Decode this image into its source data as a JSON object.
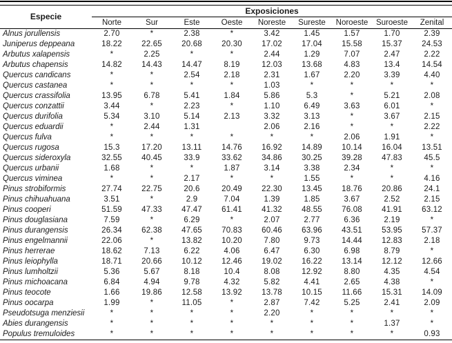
{
  "colors": {
    "text": "#1a1a1a",
    "background": "#ffffff",
    "rule": "#000000"
  },
  "table": {
    "title_col": "Especie",
    "group_header": "Exposiciones",
    "columns": [
      "Norte",
      "Sur",
      "Este",
      "Oeste",
      "Noreste",
      "Sureste",
      "Noroeste",
      "Suroeste",
      "Zenital"
    ],
    "no_data_marker": "*",
    "rows": [
      {
        "species": "Alnus jorullensis",
        "values": [
          "2.70",
          "*",
          "2.38",
          "*",
          "3.42",
          "1.45",
          "1.57",
          "1.70",
          "2.39"
        ]
      },
      {
        "species": "Juniperus deppeana",
        "values": [
          "18.22",
          "22.65",
          "20.68",
          "20.30",
          "17.02",
          "17.04",
          "15.58",
          "15.37",
          "24.53"
        ]
      },
      {
        "species": "Arbutus xalapensis",
        "values": [
          "*",
          "2.25",
          "*",
          "*",
          "2.44",
          "1.29",
          "7.07",
          "2.47",
          "2.22"
        ]
      },
      {
        "species": "Arbutus chapensis",
        "values": [
          "14.82",
          "14.43",
          "14.47",
          "8.19",
          "12.03",
          "13.68",
          "4.83",
          "13.4",
          "14.54"
        ]
      },
      {
        "species": "Quercus candicans",
        "values": [
          "*",
          "*",
          "2.54",
          "2.18",
          "2.31",
          "1.67",
          "2.20",
          "3.39",
          "4.40"
        ]
      },
      {
        "species": "Quercus castanea",
        "values": [
          "*",
          "*",
          "*",
          "*",
          "1.03",
          "*",
          "*",
          "*",
          "*"
        ]
      },
      {
        "species": "Quercus crassifolia",
        "values": [
          "13.95",
          "6.78",
          "5.41",
          "1.84",
          "5.86",
          "5.3",
          "*",
          "5.21",
          "2.08"
        ]
      },
      {
        "species": "Quercus conzattii",
        "values": [
          "3.44",
          "*",
          "2.23",
          "*",
          "1.10",
          "6.49",
          "3.63",
          "6.01",
          "*"
        ]
      },
      {
        "species": "Quercus durifolia",
        "values": [
          "5.34",
          "3.10",
          "5.14",
          "2.13",
          "3.32",
          "3.13",
          "*",
          "3.67",
          "2.15"
        ]
      },
      {
        "species": "Quercus eduardii",
        "values": [
          "*",
          "2.44",
          "1.31",
          "",
          "2.06",
          "2.16",
          "*",
          "*",
          "2.22"
        ]
      },
      {
        "species": "Quercus fulva",
        "values": [
          "*",
          "*",
          "*",
          "*",
          "*",
          "*",
          "2.06",
          "1.91",
          "*"
        ]
      },
      {
        "species": "Quercus rugosa",
        "values": [
          "15.3",
          "17.20",
          "13.11",
          "14.76",
          "16.92",
          "14.89",
          "10.14",
          "16.04",
          "13.51"
        ]
      },
      {
        "species": "Quercus sideroxyla",
        "values": [
          "32.55",
          "40.45",
          "33.9",
          "33.62",
          "34.86",
          "30.25",
          "39.28",
          "47.83",
          "45.5"
        ]
      },
      {
        "species": "Quercus urbanii",
        "values": [
          "1.68",
          "*",
          "*",
          "1.87",
          "3.14",
          "3.38",
          "2.34",
          "*",
          "*"
        ]
      },
      {
        "species": "Quercus viminea",
        "values": [
          "*",
          "*",
          "2.17",
          "*",
          "*",
          "1.55",
          "*",
          "*",
          "4.16"
        ]
      },
      {
        "species": "Pinus strobiformis",
        "values": [
          "27.74",
          "22.75",
          "20.6",
          "20.49",
          "22.30",
          "13.45",
          "18.76",
          "20.86",
          "24.1"
        ]
      },
      {
        "species": "Pinus chihuahuana",
        "values": [
          "3.51",
          "*",
          "2.9",
          "7.04",
          "1.39",
          "1.85",
          "3.67",
          "2.52",
          "2.15"
        ]
      },
      {
        "species": "Pinus cooperi",
        "values": [
          "51.59",
          "47.33",
          "47.47",
          "61.41",
          "41.32",
          "48.55",
          "76.08",
          "41.91",
          "63.12"
        ]
      },
      {
        "species": "Pinus douglasiana",
        "values": [
          "7.59",
          "*",
          "6.29",
          "*",
          "2.07",
          "2.77",
          "6.36",
          "2.19",
          "*"
        ]
      },
      {
        "species": "Pinus durangensis",
        "values": [
          "26.34",
          "62.38",
          "47.65",
          "70.83",
          "60.46",
          "63.96",
          "43.51",
          "53.95",
          "57.37"
        ]
      },
      {
        "species": "Pinus engelmannii",
        "values": [
          "22.06",
          "*",
          "13.82",
          "10.20",
          "7.80",
          "9.73",
          "14.44",
          "12.83",
          "2.18"
        ]
      },
      {
        "species": "Pinus herrerae",
        "values": [
          "18.62",
          "7.13",
          "6.22",
          "4.06",
          "6.47",
          "6.30",
          "6.98",
          "8.79",
          "*"
        ]
      },
      {
        "species": "Pinus leiophylla",
        "values": [
          "18.71",
          "20.66",
          "10.12",
          "12.46",
          "19.02",
          "16.22",
          "13.14",
          "12.12",
          "12.66"
        ]
      },
      {
        "species": "Pinus lumholtzii",
        "values": [
          "5.36",
          "5.67",
          "8.18",
          "10.4",
          "8.08",
          "12.92",
          "8.80",
          "4.35",
          "4.54"
        ]
      },
      {
        "species": "Pinus michoacana",
        "values": [
          "6.84",
          "4.94",
          "9.78",
          "4.32",
          "5.82",
          "4.41",
          "2.65",
          "4.38",
          "*"
        ]
      },
      {
        "species": "Pinus teocote",
        "values": [
          "1.66",
          "19.86",
          "12.58",
          "13.92",
          "13.78",
          "10.15",
          "11.66",
          "15.31",
          "14.09"
        ]
      },
      {
        "species": "Pinus oocarpa",
        "values": [
          "1.99",
          "*",
          "11.05",
          "*",
          "2.87",
          "7.42",
          "5.25",
          "2.41",
          "2.09"
        ]
      },
      {
        "species": "Pseudotsuga menziesii",
        "values": [
          "*",
          "*",
          "*",
          "*",
          "2.20",
          "*",
          "*",
          "*",
          "*"
        ]
      },
      {
        "species": "Abies durangensis",
        "values": [
          "*",
          "*",
          "*",
          "*",
          "*",
          "*",
          "*",
          "1.37",
          "*"
        ]
      },
      {
        "species": "Populus tremuloides",
        "values": [
          "*",
          "*",
          "*",
          "*",
          "*",
          "*",
          "*",
          "*",
          "0.93"
        ]
      }
    ]
  }
}
